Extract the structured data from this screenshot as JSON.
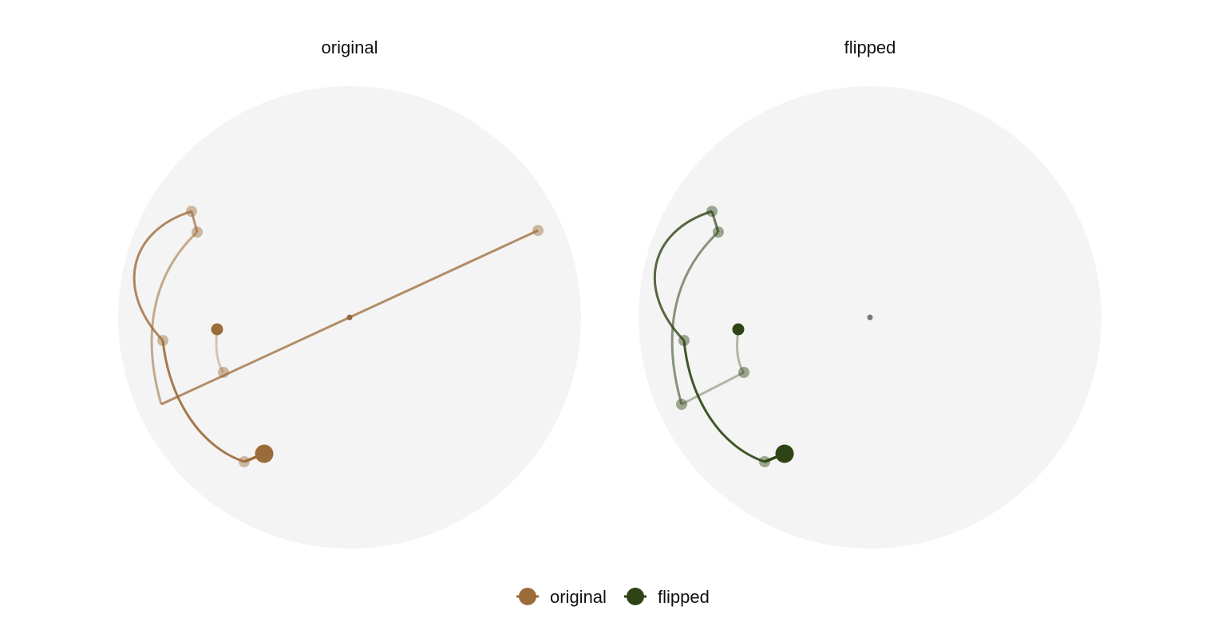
{
  "colors": {
    "background": "#ffffff",
    "disk": "#f4f4f4",
    "center_marker": "#777777",
    "original": "#9c6b3a",
    "flipped": "#2e4414"
  },
  "panels": [
    {
      "key": "original",
      "title": "original"
    },
    {
      "key": "flipped",
      "title": "flipped"
    }
  ],
  "legend": [
    {
      "key": "original",
      "label": "original"
    },
    {
      "key": "flipped",
      "label": "flipped"
    }
  ]
}
